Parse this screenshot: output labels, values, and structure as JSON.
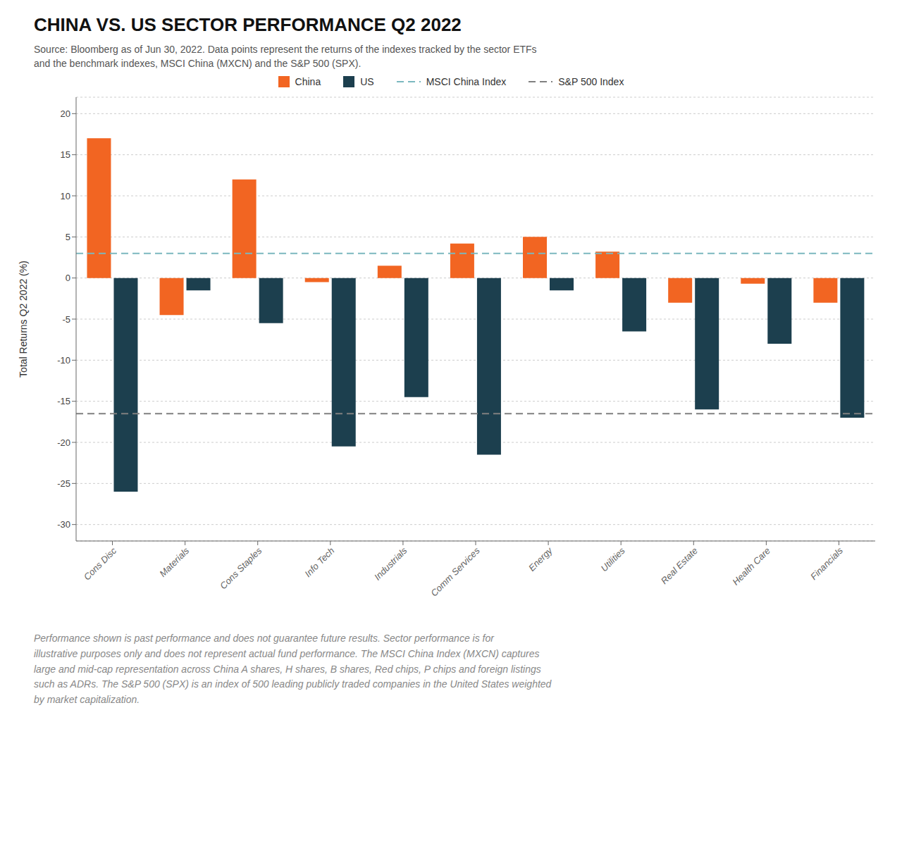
{
  "chart_data": {
    "type": "bar",
    "title": "CHINA VS. US SECTOR PERFORMANCE Q2 2022",
    "subtitle": "Source: Bloomberg as of Jun 30, 2022. Data points represent the returns of the indexes tracked by the sector ETFs\nand the benchmark indexes, MSCI China (MXCN) and the S&P 500 (SPX).",
    "annotations": [
      "Performance shown is past performance and does not guarantee future results. Sector performance is for\nillustrative purposes only and does not represent actual fund performance. The MSCI China Index (MXCN) captures\nlarge and mid-cap representation across China A shares, H shares, B shares, Red chips, P chips and foreign listings\nsuch as ADRs. The S&P 500 (SPX) is an index of 500 leading publicly traded companies in the United States weighted\nby market capitalization."
    ],
    "categories": [
      "Cons Disc",
      "Materials",
      "Cons Staples",
      "Info Tech",
      "Industrials",
      "Comm Services",
      "Energy",
      "Utilities",
      "Real Estate",
      "Health Care",
      "Financials"
    ],
    "series": [
      {
        "name": "China",
        "color": "#F26522",
        "values": [
          17.0,
          -4.5,
          12.0,
          -0.5,
          1.5,
          4.2,
          5.0,
          3.2,
          -3.0,
          -0.7,
          -3.0
        ]
      },
      {
        "name": "US",
        "color": "#1C3F4E",
        "values": [
          -26.0,
          -1.5,
          -5.5,
          -20.5,
          -14.5,
          -21.5,
          -1.5,
          -6.5,
          -16.0,
          -8.0,
          -17.0
        ]
      }
    ],
    "reference_lines": [
      {
        "name": "MSCI China Index",
        "value": 3.0,
        "color": "#7BB8BF",
        "line_style": "dashed"
      },
      {
        "name": "S&P 500 Index",
        "value": -16.5,
        "color": "#808080",
        "line_style": "dashed"
      }
    ],
    "ylabel": "Total Returns Q2 2022 (%)",
    "ylim": [
      -32,
      22
    ],
    "yticks": [
      20,
      15,
      10,
      5,
      0,
      -5,
      -10,
      -15,
      -20,
      -25,
      -30
    ],
    "grid": true,
    "legend": "top"
  }
}
